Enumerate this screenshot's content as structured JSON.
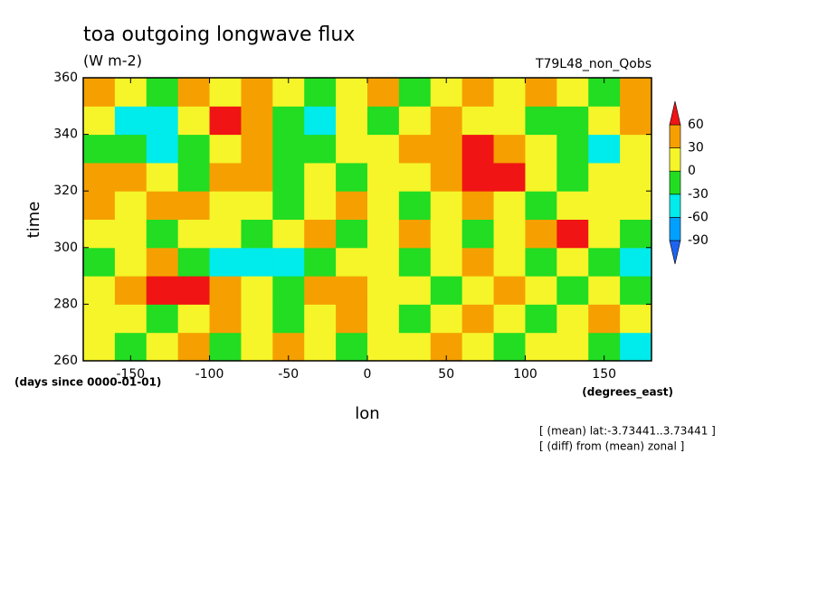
{
  "chart_data": {
    "type": "heatmap",
    "title": "toa outgoing longwave flux",
    "subtitle": "(W m-2)",
    "run_label": "T79L48_non_Qobs",
    "x_label": "lon",
    "y_label": "time",
    "x_units": "(degrees_east)",
    "y_units": "(days since 0000-01-01)",
    "notes": [
      "[ (mean) lat:-3.73441..3.73441 ]",
      "[ (diff) from (mean) zonal ]"
    ],
    "xlim": [
      -180,
      180
    ],
    "ylim": [
      260,
      360
    ],
    "xticks": [
      -150,
      -100,
      -50,
      0,
      50,
      100,
      150
    ],
    "yticks": [
      260,
      280,
      300,
      320,
      340,
      360
    ],
    "x": [
      -170,
      -150,
      -130,
      -110,
      -90,
      -70,
      -50,
      -30,
      -10,
      10,
      30,
      50,
      70,
      90,
      110,
      130,
      150,
      170
    ],
    "y": [
      265,
      275,
      285,
      295,
      305,
      315,
      325,
      335,
      345,
      355
    ],
    "z": [
      [
        10,
        -20,
        15,
        30,
        -10,
        20,
        40,
        5,
        -15,
        20,
        10,
        35,
        0,
        -20,
        25,
        10,
        -10,
        -40
      ],
      [
        20,
        5,
        -10,
        25,
        35,
        10,
        -20,
        15,
        30,
        5,
        -25,
        20,
        40,
        10,
        -5,
        15,
        30,
        0
      ],
      [
        0,
        45,
        70,
        65,
        30,
        10,
        -15,
        55,
        40,
        15,
        20,
        -10,
        25,
        35,
        10,
        -20,
        5,
        -30
      ],
      [
        -20,
        15,
        30,
        -10,
        -35,
        -50,
        -40,
        -25,
        10,
        20,
        -15,
        5,
        30,
        15,
        -10,
        20,
        -30,
        -45
      ],
      [
        25,
        10,
        -15,
        20,
        5,
        -20,
        15,
        30,
        -10,
        25,
        40,
        15,
        -20,
        10,
        45,
        70,
        20,
        -15
      ],
      [
        35,
        20,
        50,
        40,
        10,
        25,
        -15,
        5,
        30,
        15,
        -10,
        20,
        35,
        10,
        -5,
        25,
        15,
        5
      ],
      [
        40,
        30,
        10,
        -20,
        35,
        50,
        -10,
        20,
        -15,
        10,
        25,
        45,
        75,
        65,
        20,
        -10,
        15,
        20
      ],
      [
        -10,
        -30,
        -45,
        -20,
        10,
        30,
        -25,
        -15,
        5,
        25,
        30,
        55,
        70,
        40,
        10,
        -20,
        -35,
        10
      ],
      [
        15,
        -40,
        -50,
        20,
        65,
        45,
        -30,
        -35,
        10,
        -10,
        20,
        30,
        15,
        25,
        -15,
        -5,
        20,
        35
      ],
      [
        50,
        20,
        -10,
        35,
        15,
        30,
        10,
        -20,
        25,
        35,
        -10,
        15,
        40,
        20,
        45,
        10,
        -15,
        30
      ]
    ],
    "levels": [
      -90,
      -60,
      -30,
      0,
      30,
      60
    ],
    "colors": [
      "#1e64f0",
      "#00a0ff",
      "#00ebeb",
      "#22dd22",
      "#f5f52a",
      "#f5a000",
      "#f01414"
    ]
  }
}
